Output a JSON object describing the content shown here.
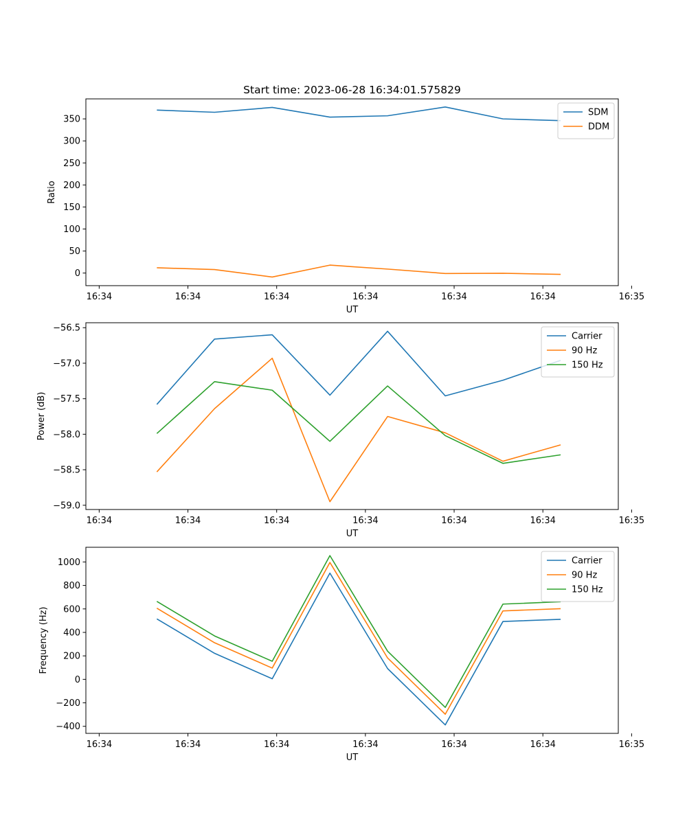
{
  "figure": {
    "title": "Start time: 2023-06-28 16:34:01.575829"
  },
  "chart_data": [
    {
      "type": "line",
      "title": "Start time: 2023-06-28 16:34:01.575829",
      "xlabel": "UT",
      "ylabel": "Ratio",
      "x": [
        1.6,
        2.9,
        4.2,
        5.5,
        6.8,
        8.1,
        9.4,
        10.7
      ],
      "xlim": [
        0,
        12
      ],
      "xticks": [
        0.3,
        2.3,
        4.3,
        6.3,
        8.3,
        10.3,
        12.3
      ],
      "xtick_labels": [
        "16:34",
        "16:34",
        "16:34",
        "16:34",
        "16:34",
        "16:34",
        "16:35"
      ],
      "ylim": [
        -28.6,
        395.4
      ],
      "yticks": [
        0,
        50,
        100,
        150,
        200,
        250,
        300,
        350
      ],
      "ytick_labels": [
        "0",
        "50",
        "100",
        "150",
        "200",
        "250",
        "300",
        "350"
      ],
      "legend": "top-right",
      "grid": false,
      "series": [
        {
          "name": "SDM",
          "color": "#1f77b4",
          "values": [
            370,
            365,
            376,
            354,
            357,
            377,
            350,
            346
          ]
        },
        {
          "name": "DDM",
          "color": "#ff7f0e",
          "values": [
            12,
            8,
            -9,
            18,
            9,
            -1,
            -0.5,
            -3
          ]
        }
      ]
    },
    {
      "type": "line",
      "xlabel": "UT",
      "ylabel": "Power (dB)",
      "x": [
        1.6,
        2.9,
        4.2,
        5.5,
        6.8,
        8.1,
        9.4,
        10.7
      ],
      "xlim": [
        0,
        12
      ],
      "xticks": [
        0.3,
        2.3,
        4.3,
        6.3,
        8.3,
        10.3,
        12.3
      ],
      "xtick_labels": [
        "16:34",
        "16:34",
        "16:34",
        "16:34",
        "16:34",
        "16:34",
        "16:35"
      ],
      "ylim": [
        -59.06,
        -56.43
      ],
      "yticks": [
        -59.0,
        -58.5,
        -58.0,
        -57.5,
        -57.0,
        -56.5
      ],
      "ytick_labels": [
        "−59.0",
        "−58.5",
        "−58.0",
        "−57.5",
        "−57.0",
        "−56.5"
      ],
      "legend": "top-right",
      "grid": false,
      "series": [
        {
          "name": "Carrier",
          "color": "#1f77b4",
          "values": [
            -57.58,
            -56.66,
            -56.6,
            -57.45,
            -56.55,
            -57.46,
            -57.24,
            -56.96
          ]
        },
        {
          "name": "90 Hz",
          "color": "#ff7f0e",
          "values": [
            -58.53,
            -57.64,
            -56.93,
            -58.95,
            -57.75,
            -57.98,
            -58.38,
            -58.15
          ]
        },
        {
          "name": "150 Hz",
          "color": "#2ca02c",
          "values": [
            -57.99,
            -57.26,
            -57.38,
            -58.1,
            -57.32,
            -58.02,
            -58.41,
            -58.29
          ]
        }
      ]
    },
    {
      "type": "line",
      "xlabel": "UT",
      "ylabel": "Frequency (Hz)",
      "x": [
        1.6,
        2.9,
        4.2,
        5.5,
        6.8,
        8.1,
        9.4,
        10.7
      ],
      "xlim": [
        0,
        12
      ],
      "xticks": [
        0.3,
        2.3,
        4.3,
        6.3,
        8.3,
        10.3,
        12.3
      ],
      "xtick_labels": [
        "16:34",
        "16:34",
        "16:34",
        "16:34",
        "16:34",
        "16:34",
        "16:35"
      ],
      "ylim": [
        -460,
        1125
      ],
      "yticks": [
        -400,
        -200,
        0,
        200,
        400,
        600,
        800,
        1000
      ],
      "ytick_labels": [
        "−400",
        "−200",
        "0",
        "200",
        "400",
        "600",
        "800",
        "1000"
      ],
      "legend": "top-right",
      "grid": false,
      "series": [
        {
          "name": "Carrier",
          "color": "#1f77b4",
          "values": [
            515,
            222,
            5,
            905,
            92,
            -388,
            493,
            511
          ]
        },
        {
          "name": "90 Hz",
          "color": "#ff7f0e",
          "values": [
            606,
            312,
            96,
            996,
            182,
            -297,
            583,
            602
          ]
        },
        {
          "name": "150 Hz",
          "color": "#2ca02c",
          "values": [
            664,
            370,
            154,
            1054,
            240,
            -239,
            641,
            661
          ]
        }
      ]
    }
  ]
}
